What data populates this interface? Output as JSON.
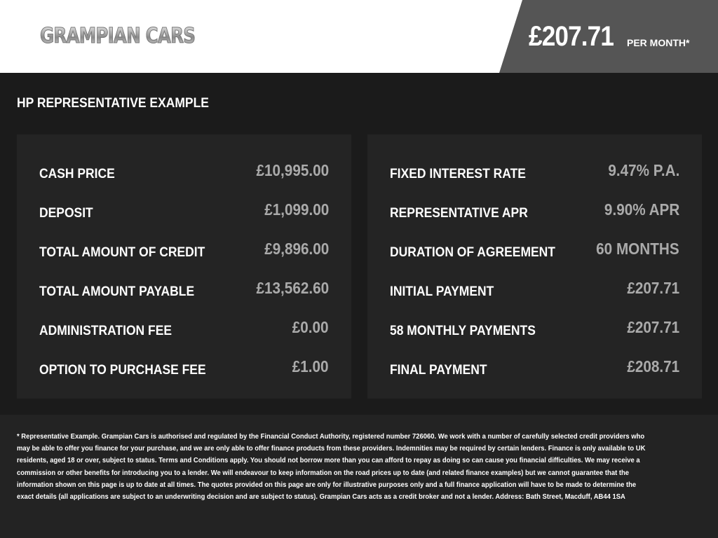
{
  "header": {
    "logo_text": "GRAMPIAN CARS",
    "price": "£207.71",
    "per_month": "PER MONTH*"
  },
  "title": "HP REPRESENTATIVE EXAMPLE",
  "left": [
    {
      "label": "CASH PRICE",
      "value": "£10,995.00"
    },
    {
      "label": "DEPOSIT",
      "value": "£1,099.00"
    },
    {
      "label": "TOTAL AMOUNT OF CREDIT",
      "value": "£9,896.00"
    },
    {
      "label": "TOTAL AMOUNT PAYABLE",
      "value": "£13,562.60"
    },
    {
      "label": "ADMINISTRATION FEE",
      "value": "£0.00"
    },
    {
      "label": "OPTION TO PURCHASE FEE",
      "value": "£1.00"
    }
  ],
  "right": [
    {
      "label": "FIXED INTEREST RATE",
      "value": "9.47% P.A."
    },
    {
      "label": "REPRESENTATIVE APR",
      "value": "9.90% APR"
    },
    {
      "label": "DURATION OF AGREEMENT",
      "value": "60 MONTHS"
    },
    {
      "label": "INITIAL PAYMENT",
      "value": "£207.71"
    },
    {
      "label": "58 MONTHLY PAYMENTS",
      "value": "£207.71"
    },
    {
      "label": "FINAL PAYMENT",
      "value": "£208.71"
    }
  ],
  "disclaimer": "* Representative Example. Grampian Cars is authorised and regulated by the Financial Conduct Authority, registered number 726060. We work with a number of carefully selected credit providers who may be able to offer you finance for your purchase, and we are only able to offer finance products from these providers. Indemnities may be required by certain lenders. Finance is only available to UK residents, aged 18 or over, subject to status. Terms and Conditions apply. You should not borrow more than you can afford to repay as doing so can cause you financial difficulties. We may receive a commission or other benefits for introducing you to a lender. We will endeavour to keep information on the road prices up to date (and related finance examples) but we cannot guarantee that the information shown on this page is up to date at all times. The quotes provided on this page are only for illustrative purposes only and a full finance application will have to be made to determine the exact details (all applications are subject to an underwriting decision and are subject to status). Grampian Cars acts as a credit broker and not a lender. Address: Bath Street, Macduff, AB44 1SA"
}
